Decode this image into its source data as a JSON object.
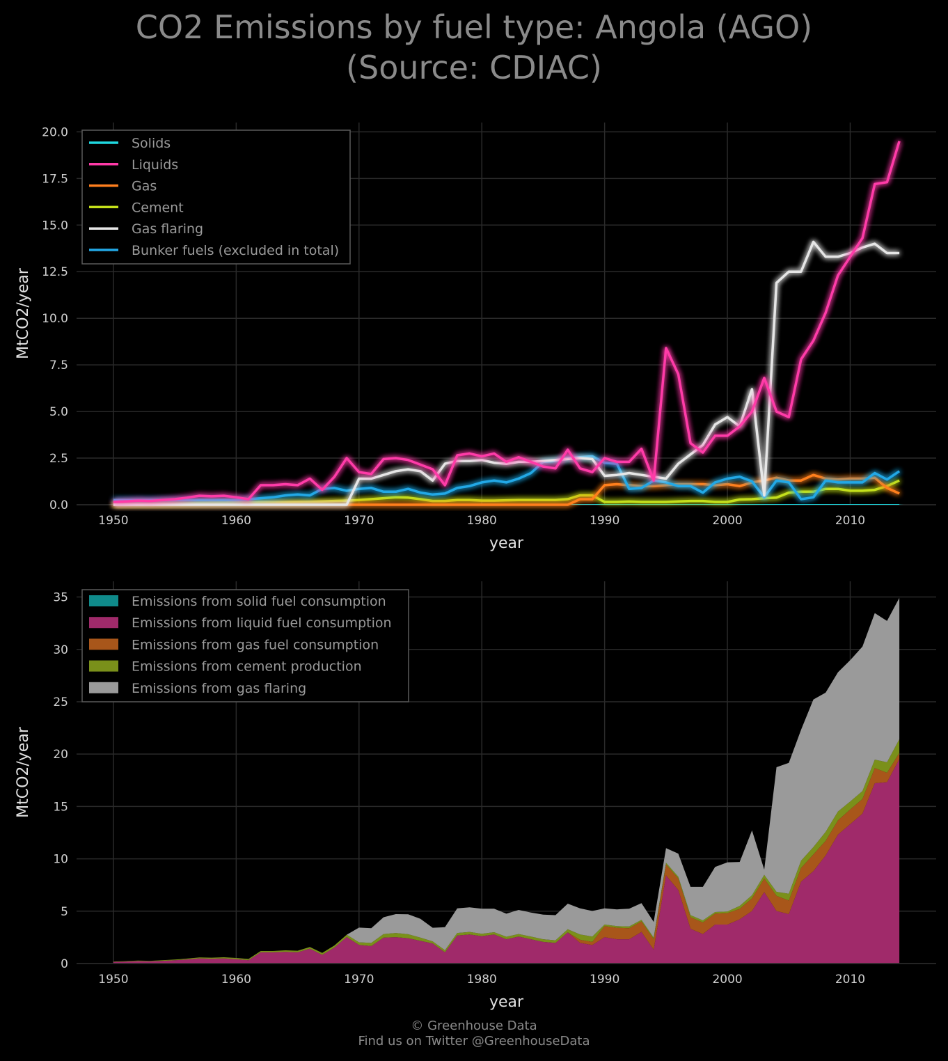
{
  "title": {
    "line1": "CO2 Emissions by fuel type: Angola (AGO)",
    "line2": "(Source: CDIAC)"
  },
  "footer": {
    "line1": "© Greenhouse Data",
    "line2": "Find us on Twitter @GreenhouseData"
  },
  "colors": {
    "background": "#000000",
    "solids": "#1fd8e0",
    "liquids": "#ff3aa8",
    "gas": "#ff7f1e",
    "cement": "#c4e01a",
    "flaring": "#e6e6e6",
    "bunker": "#23a8e6",
    "area_solids": "#0f8a8a",
    "area_liquids": "#a02a6a",
    "area_gas": "#a8561a",
    "area_cement": "#7a901a",
    "area_flaring": "#9a9a9a"
  },
  "chart_data": [
    {
      "type": "line",
      "xlabel": "year",
      "ylabel": "MtCO2/year",
      "xlim": [
        1947,
        2017
      ],
      "ylim": [
        0,
        20.5
      ],
      "xticks": [
        "1950",
        "1960",
        "1970",
        "1980",
        "1990",
        "2000",
        "2010"
      ],
      "yticks": [
        "0.0",
        "2.5",
        "5.0",
        "7.5",
        "10.0",
        "12.5",
        "15.0",
        "17.5",
        "20.0"
      ],
      "grid": true,
      "legend_position": "top-left",
      "x": [
        1950,
        1951,
        1952,
        1953,
        1954,
        1955,
        1956,
        1957,
        1958,
        1959,
        1960,
        1961,
        1962,
        1963,
        1964,
        1965,
        1966,
        1967,
        1968,
        1969,
        1970,
        1971,
        1972,
        1973,
        1974,
        1975,
        1976,
        1977,
        1978,
        1979,
        1980,
        1981,
        1982,
        1983,
        1984,
        1985,
        1986,
        1987,
        1988,
        1989,
        1990,
        1991,
        1992,
        1993,
        1994,
        1995,
        1996,
        1997,
        1998,
        1999,
        2000,
        2001,
        2002,
        2003,
        2004,
        2005,
        2006,
        2007,
        2008,
        2009,
        2010,
        2011,
        2012,
        2013,
        2014
      ],
      "series": [
        {
          "name": "Solids",
          "color_key": "solids",
          "values": [
            0.01,
            0.01,
            0.01,
            0.01,
            0.01,
            0.01,
            0.01,
            0.01,
            0.01,
            0.01,
            0.01,
            0.01,
            0.02,
            0.02,
            0.02,
            0.02,
            0.02,
            0.03,
            0.03,
            0.03,
            0.03,
            0.02,
            0.02,
            0.02,
            0.02,
            0.02,
            0.02,
            0.02,
            0.02,
            0.02,
            0.02,
            0.02,
            0.02,
            0.02,
            0.02,
            0.02,
            0.02,
            0.02,
            0.02,
            0.02,
            0.02,
            0.02,
            0.02,
            0.02,
            0.02,
            0.02,
            0.02,
            0.02,
            0.02,
            0.02,
            0.02,
            0.02,
            0.02,
            0.02,
            0.02,
            0.02,
            0.02,
            0.02,
            0.02,
            0.02,
            0.02,
            0.02,
            0.02,
            0.02,
            0.02
          ]
        },
        {
          "name": "Liquids",
          "color_key": "liquids",
          "values": [
            0.15,
            0.18,
            0.22,
            0.2,
            0.25,
            0.3,
            0.38,
            0.48,
            0.45,
            0.48,
            0.4,
            0.3,
            1.05,
            1.05,
            1.1,
            1.05,
            1.4,
            0.8,
            1.5,
            2.5,
            1.75,
            1.65,
            2.45,
            2.5,
            2.4,
            2.15,
            1.9,
            1.05,
            2.65,
            2.75,
            2.6,
            2.75,
            2.3,
            2.55,
            2.3,
            2.05,
            1.95,
            2.95,
            1.95,
            1.75,
            2.5,
            2.3,
            2.3,
            3.0,
            1.3,
            8.4,
            7.0,
            3.3,
            2.8,
            3.7,
            3.7,
            4.2,
            5.0,
            6.8,
            5.0,
            4.7,
            7.8,
            8.8,
            10.3,
            12.3,
            13.3,
            14.3,
            17.2,
            17.3,
            19.5
          ]
        },
        {
          "name": "Gas",
          "color_key": "gas",
          "values": [
            0,
            0,
            0,
            0,
            0,
            0,
            0,
            0,
            0,
            0,
            0,
            0,
            0,
            0,
            0,
            0,
            0,
            0,
            0,
            0,
            0,
            0,
            0,
            0,
            0,
            0,
            0,
            0,
            0,
            0,
            0,
            0,
            0,
            0,
            0,
            0,
            0,
            0,
            0.3,
            0.3,
            1.05,
            1.1,
            1.05,
            1.0,
            1.0,
            1.05,
            1.1,
            1.1,
            1.1,
            1.05,
            1.1,
            1.0,
            1.2,
            1.3,
            1.45,
            1.3,
            1.3,
            1.6,
            1.4,
            1.35,
            1.4,
            1.4,
            1.45,
            0.9,
            0.6
          ]
        },
        {
          "name": "Cement",
          "color_key": "cement",
          "values": [
            0.03,
            0.04,
            0.05,
            0.05,
            0.06,
            0.07,
            0.08,
            0.09,
            0.1,
            0.11,
            0.12,
            0.12,
            0.13,
            0.13,
            0.14,
            0.15,
            0.16,
            0.18,
            0.2,
            0.22,
            0.25,
            0.3,
            0.35,
            0.4,
            0.38,
            0.3,
            0.2,
            0.2,
            0.25,
            0.25,
            0.22,
            0.22,
            0.24,
            0.25,
            0.25,
            0.25,
            0.25,
            0.3,
            0.5,
            0.5,
            0.15,
            0.15,
            0.17,
            0.15,
            0.15,
            0.15,
            0.18,
            0.2,
            0.2,
            0.15,
            0.15,
            0.28,
            0.3,
            0.35,
            0.38,
            0.65,
            0.7,
            0.7,
            0.85,
            0.85,
            0.75,
            0.75,
            0.8,
            1.0,
            1.3
          ]
        },
        {
          "name": "Gas flaring",
          "color_key": "flaring",
          "values": [
            0,
            0,
            0,
            0,
            0,
            0,
            0,
            0,
            0,
            0,
            0,
            0,
            0,
            0,
            0,
            0,
            0,
            0,
            0,
            0,
            1.4,
            1.4,
            1.6,
            1.8,
            1.9,
            1.8,
            1.3,
            2.2,
            2.35,
            2.35,
            2.4,
            2.25,
            2.2,
            2.3,
            2.3,
            2.35,
            2.4,
            2.45,
            2.5,
            2.45,
            1.55,
            1.6,
            1.7,
            1.6,
            1.5,
            1.4,
            2.2,
            2.7,
            3.2,
            4.3,
            4.7,
            4.2,
            6.2,
            0.5,
            11.9,
            12.5,
            12.5,
            14.1,
            13.3,
            13.3,
            13.5,
            13.8,
            14.0,
            13.5,
            13.5
          ]
        },
        {
          "name": "Bunker fuels (excluded in total)",
          "color_key": "bunker",
          "values": [
            0.25,
            0.25,
            0.25,
            0.25,
            0.25,
            0.25,
            0.25,
            0.25,
            0.25,
            0.25,
            0.25,
            0.3,
            0.35,
            0.4,
            0.5,
            0.55,
            0.5,
            0.85,
            0.9,
            0.75,
            0.85,
            0.9,
            0.7,
            0.7,
            0.85,
            0.65,
            0.55,
            0.6,
            0.9,
            1.0,
            1.2,
            1.3,
            1.2,
            1.4,
            1.7,
            2.3,
            2.35,
            2.5,
            2.55,
            2.6,
            2.25,
            2.2,
            0.85,
            0.9,
            1.3,
            1.2,
            1.0,
            1.0,
            0.65,
            1.2,
            1.4,
            1.5,
            1.25,
            0.4,
            1.3,
            1.2,
            0.3,
            0.4,
            1.3,
            1.2,
            1.2,
            1.2,
            1.7,
            1.35,
            1.8
          ]
        }
      ]
    },
    {
      "type": "area",
      "stacked": true,
      "xlabel": "year",
      "ylabel": "MtCO2/year",
      "xlim": [
        1947,
        2017
      ],
      "ylim": [
        0,
        36.5
      ],
      "xticks": [
        "1950",
        "1960",
        "1970",
        "1980",
        "1990",
        "2000",
        "2010"
      ],
      "yticks": [
        "0",
        "5",
        "10",
        "15",
        "20",
        "25",
        "30",
        "35"
      ],
      "grid": true,
      "legend_position": "top-left",
      "legend": [
        {
          "label": "Emissions from solid fuel consumption",
          "color_key": "area_solids"
        },
        {
          "label": "Emissions from liquid fuel consumption",
          "color_key": "area_liquids"
        },
        {
          "label": "Emissions from gas fuel consumption",
          "color_key": "area_gas"
        },
        {
          "label": "Emissions from cement production",
          "color_key": "area_cement"
        },
        {
          "label": "Emissions from gas flaring",
          "color_key": "area_flaring"
        }
      ],
      "stack_from_series": [
        "Solids",
        "Liquids",
        "Gas",
        "Cement",
        "Gas flaring"
      ]
    }
  ]
}
